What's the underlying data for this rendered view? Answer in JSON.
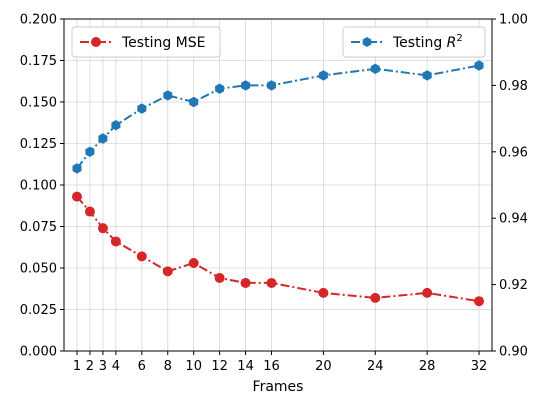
{
  "chart_data": {
    "type": "line",
    "xlabel": "Frames",
    "x": [
      1,
      2,
      3,
      4,
      6,
      8,
      10,
      12,
      14,
      16,
      20,
      24,
      28,
      32
    ],
    "x_ticks": [
      "1",
      "2",
      "3",
      "4",
      "6",
      "8",
      "10",
      "12",
      "14",
      "16",
      "20",
      "24",
      "28",
      "32"
    ],
    "grid": true,
    "left_axis": {
      "ylim": [
        0,
        0.2
      ],
      "ticks": [
        "0.000",
        "0.025",
        "0.050",
        "0.075",
        "0.100",
        "0.125",
        "0.150",
        "0.175",
        "0.200"
      ]
    },
    "right_axis": {
      "ylim": [
        0.9,
        1.0
      ],
      "ticks": [
        "0.90",
        "0.92",
        "0.94",
        "0.96",
        "0.98",
        "1.00"
      ]
    },
    "series": [
      {
        "name": "Testing MSE",
        "axis": "left",
        "color": "#d62728",
        "marker": "circle",
        "values": [
          0.093,
          0.084,
          0.074,
          0.066,
          0.057,
          0.048,
          0.053,
          0.044,
          0.041,
          0.041,
          0.035,
          0.032,
          0.035,
          0.03
        ]
      },
      {
        "name": "Testing R²",
        "name_base": "Testing ",
        "name_var": "R",
        "name_sup": "2",
        "axis": "right",
        "color": "#1f77b4",
        "marker": "hexagon",
        "values": [
          0.955,
          0.96,
          0.964,
          0.968,
          0.973,
          0.977,
          0.975,
          0.979,
          0.98,
          0.98,
          0.983,
          0.985,
          0.983,
          0.986
        ]
      }
    ],
    "legends": [
      "top-left",
      "top-right"
    ]
  }
}
